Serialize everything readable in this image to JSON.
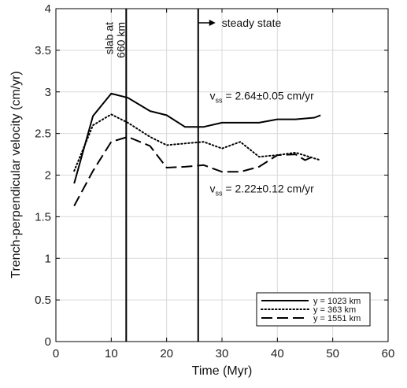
{
  "chart_data": {
    "type": "line",
    "xlabel": "Time (Myr)",
    "ylabel": "Trench-perpendicular velocity  (cm/yr)",
    "xlim": [
      0,
      60
    ],
    "ylim": [
      0,
      4
    ],
    "xticks": [
      "0",
      "10",
      "20",
      "30",
      "40",
      "50",
      "60"
    ],
    "yticks": [
      "0",
      "0.5",
      "1",
      "1.5",
      "2",
      "2.5",
      "3",
      "3.5",
      "4"
    ],
    "grid": true,
    "legend_position": "bottom-right",
    "series": [
      {
        "name": "y = 1023 km",
        "style": "solid",
        "x": [
          3.3,
          6.7,
          10,
          13,
          17,
          20,
          23.3,
          26.7,
          30,
          33.3,
          36.7,
          40,
          43.3,
          46.7,
          47.8
        ],
        "y": [
          1.9,
          2.71,
          2.98,
          2.93,
          2.77,
          2.72,
          2.58,
          2.58,
          2.63,
          2.63,
          2.63,
          2.67,
          2.67,
          2.69,
          2.72
        ]
      },
      {
        "name": "y = 363 km",
        "style": "dotted",
        "x": [
          3.3,
          6.7,
          10,
          13,
          17,
          20,
          23.3,
          26.7,
          30,
          33.3,
          36.7,
          40,
          43.3,
          46.7,
          47.8
        ],
        "y": [
          2.05,
          2.6,
          2.73,
          2.63,
          2.46,
          2.36,
          2.38,
          2.4,
          2.32,
          2.4,
          2.22,
          2.24,
          2.27,
          2.2,
          2.18
        ]
      },
      {
        "name": "y = 1551 km",
        "style": "dashed",
        "x": [
          3.3,
          6.7,
          10,
          13,
          17,
          20,
          23.3,
          26.7,
          30,
          33.3,
          36.7,
          40,
          43.3,
          45,
          46.7
        ],
        "y": [
          1.63,
          2.05,
          2.4,
          2.46,
          2.35,
          2.09,
          2.1,
          2.12,
          2.04,
          2.04,
          2.1,
          2.24,
          2.25,
          2.18,
          2.23
        ]
      }
    ],
    "vlines": [
      {
        "x": 12.7,
        "label_line1": "slab at",
        "label_line2": "660 km"
      },
      {
        "x": 25.7,
        "label": "steady state"
      }
    ],
    "annotations": [
      {
        "sym": "v",
        "sub": "ss",
        "text": " = 2.64±0.05 cm/yr",
        "x": 27.8,
        "y": 2.91
      },
      {
        "sym": "v",
        "sub": "ss",
        "text": " = 2.22±0.12 cm/yr",
        "x": 27.8,
        "y": 1.79
      }
    ]
  }
}
